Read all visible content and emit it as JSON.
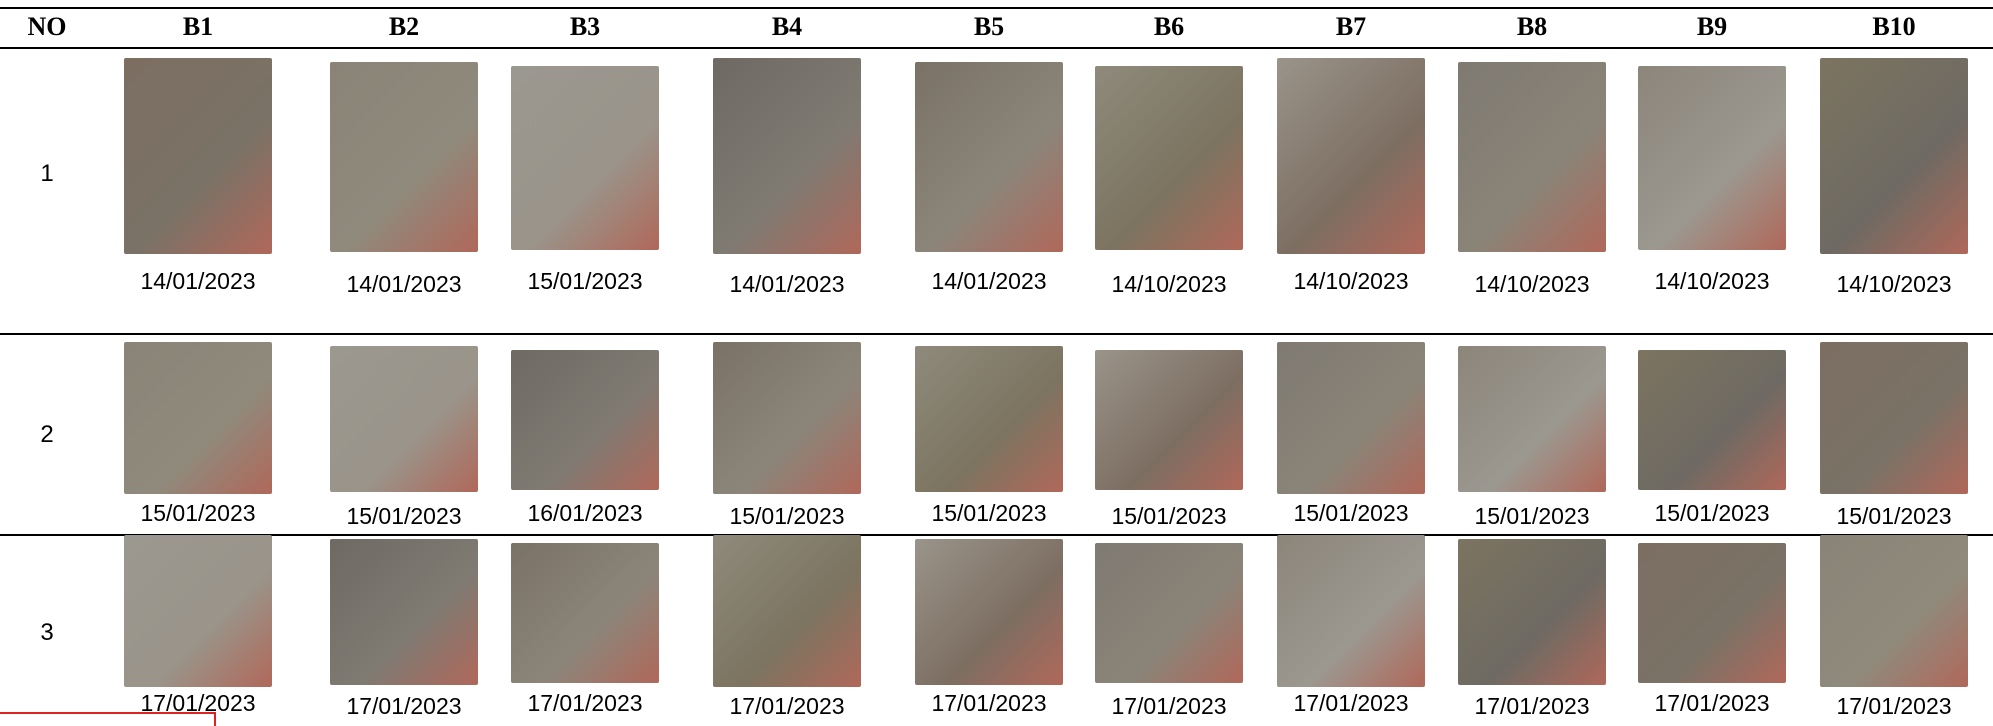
{
  "table": {
    "header": [
      "NO",
      "B1",
      "B2",
      "B3",
      "B4",
      "B5",
      "B6",
      "B7",
      "B8",
      "B9",
      "B10"
    ],
    "rows": [
      {
        "no": "1",
        "dates": [
          "14/01/2023",
          "14/01/2023",
          "15/01/2023",
          "14/01/2023",
          "14/01/2023",
          "14/10/2023",
          "14/10/2023",
          "14/10/2023",
          "14/10/2023",
          "14/10/2023"
        ]
      },
      {
        "no": "2",
        "dates": [
          "15/01/2023",
          "15/01/2023",
          "16/01/2023",
          "15/01/2023",
          "15/01/2023",
          "15/01/2023",
          "15/01/2023",
          "15/01/2023",
          "15/01/2023",
          "15/01/2023"
        ]
      },
      {
        "no": "3",
        "dates": [
          "17/01/2023",
          "17/01/2023",
          "17/01/2023",
          "17/01/2023",
          "17/01/2023",
          "17/01/2023",
          "17/01/2023",
          "17/01/2023",
          "17/01/2023",
          "17/01/2023"
        ]
      }
    ]
  }
}
